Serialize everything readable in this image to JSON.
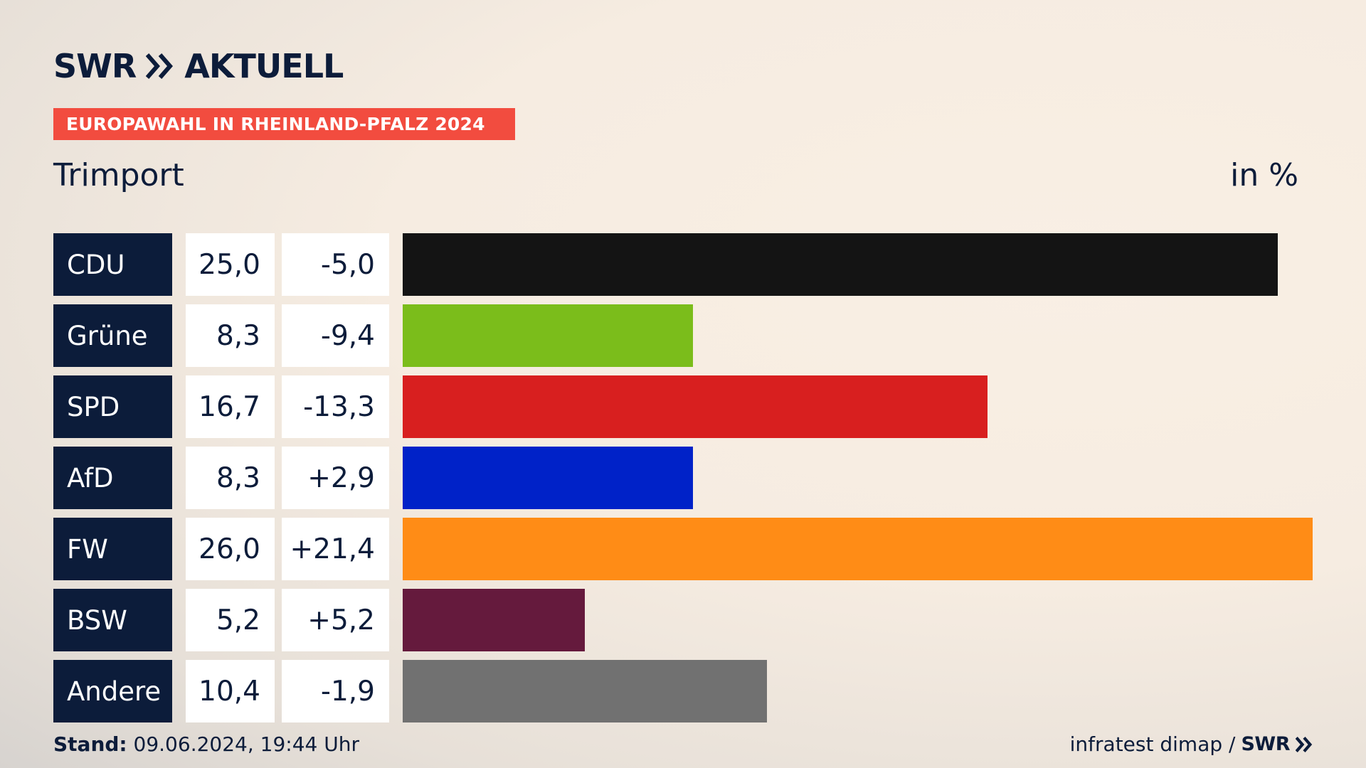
{
  "brand": {
    "name": "SWR",
    "section": "AKTUELL"
  },
  "header": {
    "badge": "EUROPAWAHL IN RHEINLAND-PFALZ 2024",
    "subtitle": "Trimport",
    "unit": "in %"
  },
  "chart_data": {
    "type": "bar",
    "orientation": "horizontal",
    "value_unit": "%",
    "xlim": [
      0,
      26
    ],
    "categories": [
      "CDU",
      "Grüne",
      "SPD",
      "AfD",
      "FW",
      "BSW",
      "Andere"
    ],
    "values": [
      25.0,
      8.3,
      16.7,
      8.3,
      26.0,
      5.2,
      10.4
    ],
    "value_labels": [
      "25,0",
      "8,3",
      "16,7",
      "8,3",
      "26,0",
      "5,2",
      "10,4"
    ],
    "diff_labels": [
      "-5,0",
      "-9,4",
      "-13,3",
      "+2,9",
      "+21,4",
      "+5,2",
      "-1,9"
    ],
    "diffs": [
      -5.0,
      -9.4,
      -13.3,
      2.9,
      21.4,
      5.2,
      -1.9
    ],
    "colors": [
      "#141414",
      "#7bbd1b",
      "#d81f1f",
      "#0022c8",
      "#ff8c16",
      "#651a3d",
      "#717171"
    ]
  },
  "footer": {
    "stand_label": "Stand:",
    "stand_value": "09.06.2024, 19:44 Uhr",
    "source": "infratest dimap /",
    "source_brand": "SWR"
  },
  "colors": {
    "navy": "#0c1c3a",
    "accent": "#f24c3f"
  },
  "icons": {
    "brand_arrows": "double-chevron-right-icon"
  }
}
